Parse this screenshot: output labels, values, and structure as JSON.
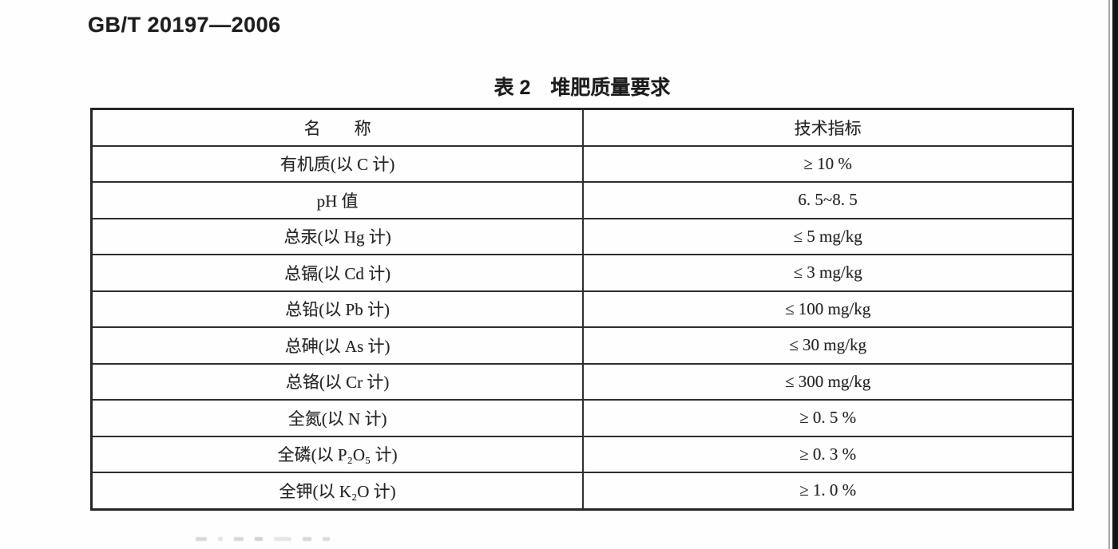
{
  "page": {
    "standard_code": "GB/T 20197—2006",
    "table_caption": "表 2　堆肥质量要求"
  },
  "table": {
    "columns": {
      "name": "名　　称",
      "indicator": "技术指标"
    },
    "rows": [
      {
        "name": "有机质(以 C 计)",
        "value": "≥ 10 %"
      },
      {
        "name": "pH 值",
        "value": "6. 5~8. 5"
      },
      {
        "name": "总汞(以 Hg 计)",
        "value": "≤ 5 mg/kg"
      },
      {
        "name": "总镉(以 Cd 计)",
        "value": "≤ 3 mg/kg"
      },
      {
        "name": "总铅(以 Pb 计)",
        "value": "≤ 100 mg/kg"
      },
      {
        "name": "总砷(以 As 计)",
        "value": "≤ 30 mg/kg"
      },
      {
        "name": "总铬(以 Cr 计)",
        "value": "≤ 300 mg/kg"
      },
      {
        "name": "全氮(以 N 计)",
        "value": "≥ 0. 5 %"
      },
      {
        "name": "全磷(以 P₂O₅ 计)",
        "value": "≥ 0. 3 %"
      },
      {
        "name": "全钾(以 K₂O 计)",
        "value": "≥ 1. 0 %"
      }
    ]
  }
}
